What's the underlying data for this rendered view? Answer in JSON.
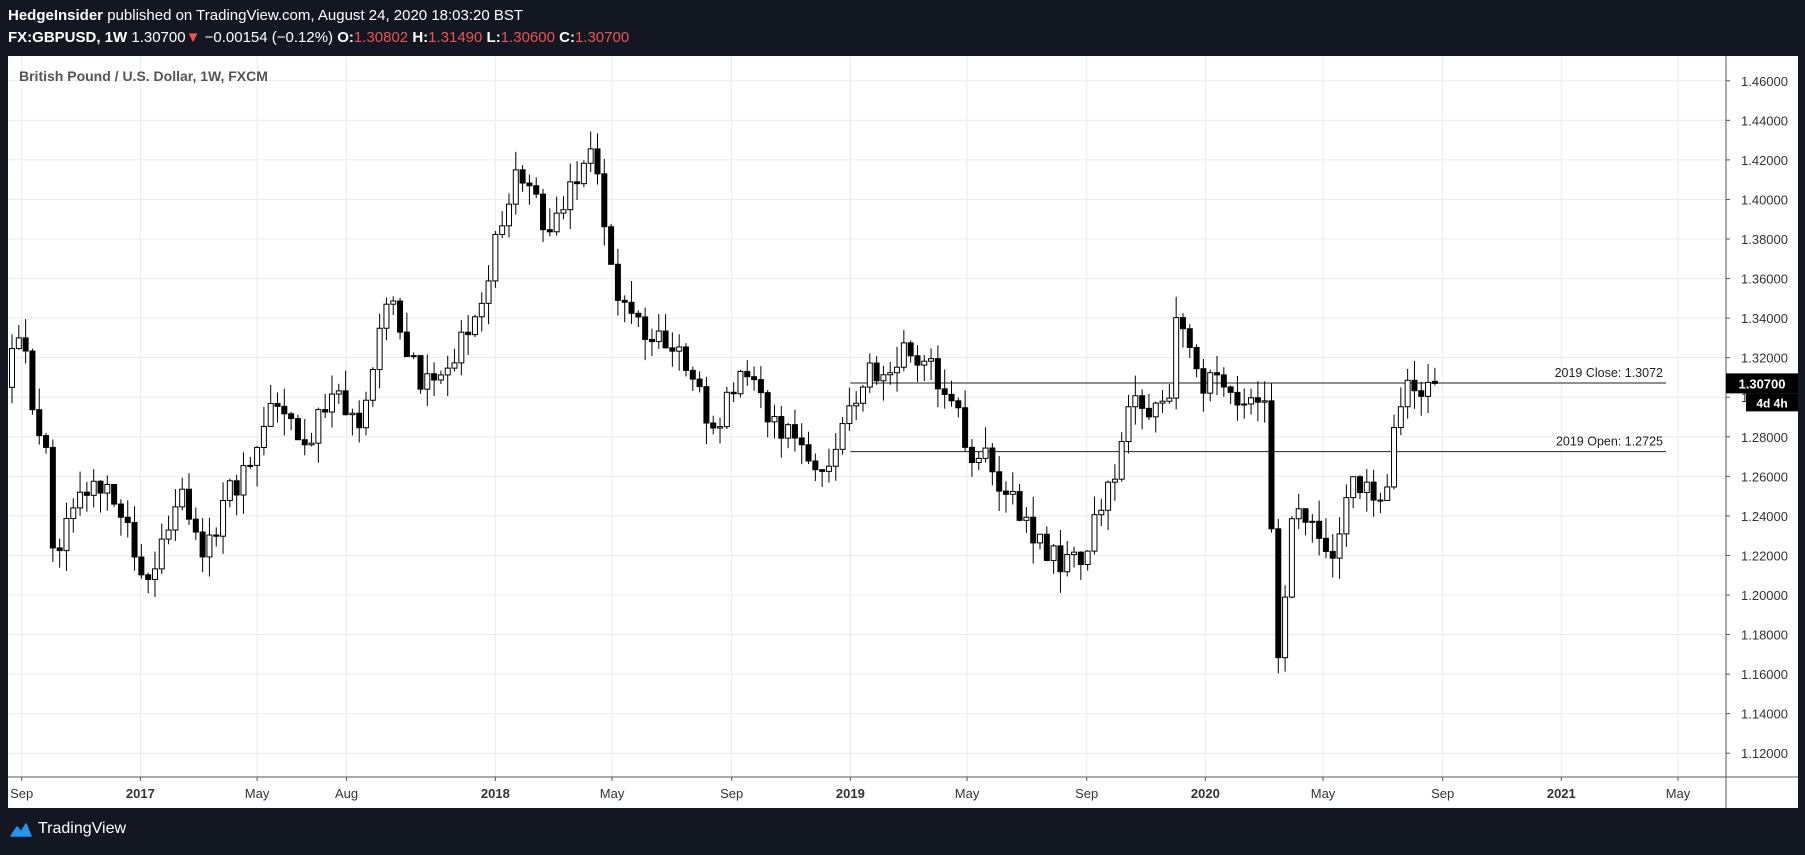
{
  "header": {
    "author": "HedgeInsider",
    "published": "published on TradingView.com, August 24, 2020 18:03:20 BST",
    "symbol": "FX:GBPUSD, 1W",
    "last": "1.30700",
    "change_arrow": "▼",
    "change": "−0.00154 (−0.12%)",
    "o_label": "O:",
    "o": "1.30802",
    "h_label": "H:",
    "h": "1.31490",
    "l_label": "L:",
    "l": "1.30600",
    "c_label": "C:",
    "c": "1.30700"
  },
  "chart_data": {
    "type": "candlestick",
    "title": "British Pound / U.S. Dollar, 1W, FXCM",
    "ylim": [
      1.11,
      1.47
    ],
    "y_ticks": [
      1.12,
      1.14,
      1.16,
      1.18,
      1.2,
      1.22,
      1.24,
      1.26,
      1.28,
      1.3,
      1.32,
      1.34,
      1.36,
      1.38,
      1.4,
      1.42,
      1.44,
      1.46
    ],
    "x_range": [
      "2016-08-22",
      "2021-06-07"
    ],
    "x_ticks": [
      {
        "label": "Sep",
        "date": "2016-09-01",
        "bold": false
      },
      {
        "label": "2017",
        "date": "2017-01-01",
        "bold": true
      },
      {
        "label": "May",
        "date": "2017-05-01",
        "bold": false
      },
      {
        "label": "Aug",
        "date": "2017-08-01",
        "bold": false
      },
      {
        "label": "2018",
        "date": "2018-01-01",
        "bold": true
      },
      {
        "label": "May",
        "date": "2018-05-01",
        "bold": false
      },
      {
        "label": "Sep",
        "date": "2018-09-01",
        "bold": false
      },
      {
        "label": "2019",
        "date": "2019-01-01",
        "bold": true
      },
      {
        "label": "May",
        "date": "2019-05-01",
        "bold": false
      },
      {
        "label": "Sep",
        "date": "2019-09-01",
        "bold": false
      },
      {
        "label": "2020",
        "date": "2020-01-01",
        "bold": true
      },
      {
        "label": "May",
        "date": "2020-05-01",
        "bold": false
      },
      {
        "label": "Sep",
        "date": "2020-09-01",
        "bold": false
      },
      {
        "label": "2021",
        "date": "2021-01-01",
        "bold": true
      },
      {
        "label": "May",
        "date": "2021-05-01",
        "bold": false
      }
    ],
    "levels": [
      {
        "label": "2019 Close: 1.3072",
        "value": 1.3072,
        "from": "2019-01-01"
      },
      {
        "label": "2019 Open: 1.2725",
        "value": 1.2725,
        "from": "2019-01-01"
      }
    ],
    "last_price": {
      "label": "1.30700",
      "value": 1.307,
      "countdown": "4d 4h"
    },
    "anchors": [
      [
        "2016-08-22",
        1.305
      ],
      [
        "2016-09-05",
        1.332
      ],
      [
        "2016-10-03",
        1.268
      ],
      [
        "2016-10-10",
        1.221
      ],
      [
        "2016-10-31",
        1.245
      ],
      [
        "2016-12-05",
        1.262
      ],
      [
        "2017-01-16",
        1.205
      ],
      [
        "2017-02-20",
        1.248
      ],
      [
        "2017-03-13",
        1.222
      ],
      [
        "2017-04-17",
        1.258
      ],
      [
        "2017-05-22",
        1.295
      ],
      [
        "2017-06-26",
        1.272
      ],
      [
        "2017-07-24",
        1.305
      ],
      [
        "2017-08-21",
        1.285
      ],
      [
        "2017-09-18",
        1.355
      ],
      [
        "2017-10-09",
        1.315
      ],
      [
        "2017-11-06",
        1.308
      ],
      [
        "2017-12-11",
        1.335
      ],
      [
        "2018-01-15",
        1.385
      ],
      [
        "2018-01-29",
        1.415
      ],
      [
        "2018-03-05",
        1.385
      ],
      [
        "2018-04-16",
        1.425
      ],
      [
        "2018-05-14",
        1.355
      ],
      [
        "2018-06-04",
        1.338
      ],
      [
        "2018-07-23",
        1.315
      ],
      [
        "2018-08-20",
        1.28
      ],
      [
        "2018-09-17",
        1.31
      ],
      [
        "2018-10-29",
        1.285
      ],
      [
        "2018-12-10",
        1.258
      ],
      [
        "2019-01-21",
        1.308
      ],
      [
        "2019-03-11",
        1.325
      ],
      [
        "2019-04-15",
        1.305
      ],
      [
        "2019-05-13",
        1.27
      ],
      [
        "2019-06-03",
        1.265
      ],
      [
        "2019-08-12",
        1.212
      ],
      [
        "2019-09-02",
        1.22
      ],
      [
        "2019-10-07",
        1.262
      ],
      [
        "2019-10-21",
        1.295
      ],
      [
        "2019-12-02",
        1.298
      ],
      [
        "2019-12-09",
        1.335
      ],
      [
        "2020-01-06",
        1.305
      ],
      [
        "2020-03-09",
        1.3
      ],
      [
        "2020-03-16",
        1.23
      ],
      [
        "2020-03-23",
        1.165
      ],
      [
        "2020-04-06",
        1.245
      ],
      [
        "2020-05-11",
        1.23
      ],
      [
        "2020-05-18",
        1.215
      ],
      [
        "2020-06-08",
        1.265
      ],
      [
        "2020-06-29",
        1.245
      ],
      [
        "2020-07-13",
        1.262
      ],
      [
        "2020-08-03",
        1.308
      ],
      [
        "2020-08-24",
        1.307
      ]
    ],
    "grid": true
  },
  "footer": {
    "brand": "TradingView",
    "logo_color": "#2196f3"
  },
  "colors": {
    "background": "#131722",
    "negative": "#ef5350"
  }
}
